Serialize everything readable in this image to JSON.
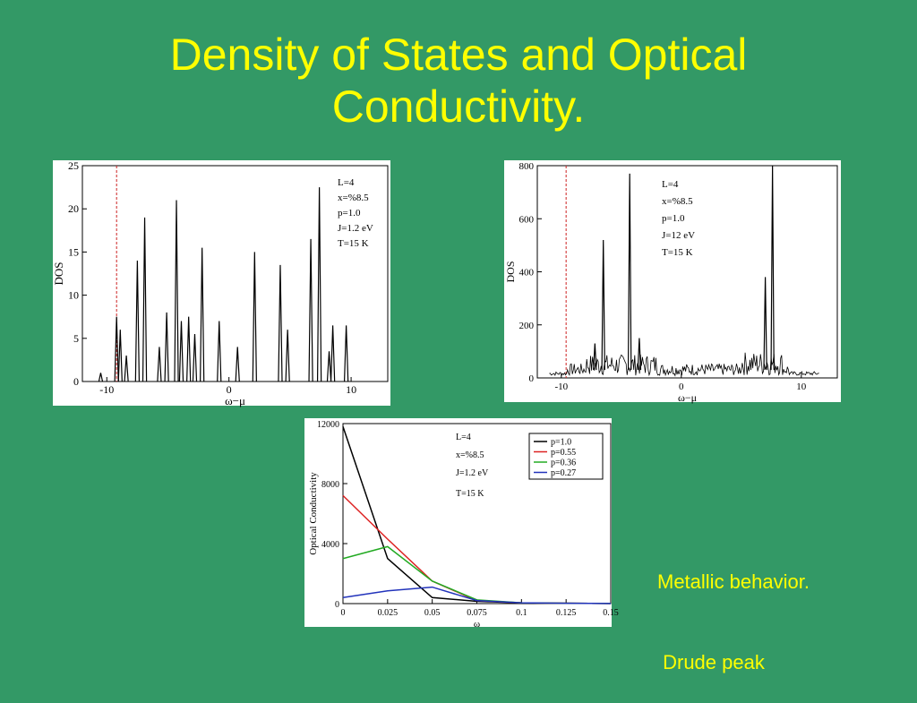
{
  "slide": {
    "title_line1": "Density of States and Optical",
    "title_line2": "Conductivity.",
    "caption_line1": "Metallic behavior.",
    "caption_line2": " Drude peak"
  },
  "colors": {
    "background": "#339966",
    "title": "#FFFF00",
    "dashed_marker": "#cc2222",
    "p1": "#000000",
    "p055": "#dd2222",
    "p036": "#22aa22",
    "p027": "#2233bb"
  },
  "chart_data": [
    {
      "type": "line",
      "xlabel": "ω−μ",
      "ylabel": "DOS",
      "xlim": [
        -12,
        13
      ],
      "ylim": [
        0,
        25
      ],
      "xticks": [
        -10,
        0,
        10
      ],
      "yticks": [
        0,
        5,
        10,
        15,
        20,
        25
      ],
      "marker_line_x": -9.2,
      "annotation_lines": [
        "L=4",
        "x=%8.5",
        "p=1.0",
        "J=1.2 eV",
        "T=15 K"
      ],
      "peaks": [
        {
          "x": -10.5,
          "h": 1
        },
        {
          "x": -9.2,
          "h": 7.5
        },
        {
          "x": -8.9,
          "h": 6
        },
        {
          "x": -8.4,
          "h": 3
        },
        {
          "x": -7.5,
          "h": 14
        },
        {
          "x": -6.9,
          "h": 19
        },
        {
          "x": -5.7,
          "h": 4
        },
        {
          "x": -5.1,
          "h": 8
        },
        {
          "x": -4.3,
          "h": 21
        },
        {
          "x": -3.9,
          "h": 7
        },
        {
          "x": -3.3,
          "h": 7.5
        },
        {
          "x": -2.8,
          "h": 5.5
        },
        {
          "x": -2.2,
          "h": 15.5
        },
        {
          "x": -0.8,
          "h": 7
        },
        {
          "x": 0.7,
          "h": 4
        },
        {
          "x": 2.1,
          "h": 15
        },
        {
          "x": 4.2,
          "h": 13.5
        },
        {
          "x": 4.8,
          "h": 6
        },
        {
          "x": 6.7,
          "h": 16.5
        },
        {
          "x": 7.4,
          "h": 22.5
        },
        {
          "x": 8.2,
          "h": 3.5
        },
        {
          "x": 8.5,
          "h": 6.5
        },
        {
          "x": 9.6,
          "h": 6.5
        }
      ]
    },
    {
      "type": "line",
      "xlabel": "ω−μ",
      "ylabel": "DOS",
      "xlim": [
        -12,
        13
      ],
      "ylim": [
        0,
        800
      ],
      "xticks": [
        -10,
        0,
        10
      ],
      "yticks": [
        0,
        200,
        400,
        600,
        800
      ],
      "marker_line_x": -9.6,
      "annotation_lines": [
        "L=4",
        "x=%8.5",
        "p=1.0",
        "J=12 eV",
        "T=15 K"
      ],
      "baseline": 30,
      "peaks": [
        {
          "x": -7.2,
          "h": 130
        },
        {
          "x": -6.5,
          "h": 520
        },
        {
          "x": -4.3,
          "h": 770
        },
        {
          "x": -3.5,
          "h": 150
        },
        {
          "x": 7.0,
          "h": 380
        },
        {
          "x": 7.6,
          "h": 800
        }
      ]
    },
    {
      "type": "line",
      "xlabel": "ω",
      "ylabel": "Optical Conductivity",
      "xlim": [
        0,
        0.15
      ],
      "ylim": [
        0,
        12000
      ],
      "xticks": [
        0,
        0.025,
        0.05,
        0.075,
        0.1,
        0.125,
        0.15
      ],
      "xticklabels": [
        "0",
        "0.025",
        "0.05",
        "0.075",
        "0.1",
        "0.125",
        "0.15"
      ],
      "yticks": [
        0,
        4000,
        8000,
        12000
      ],
      "annotation_lines": [
        "L=4",
        "x=%8.5",
        "J=1.2 eV",
        "T=15 K"
      ],
      "series": [
        {
          "name": "p=1.0",
          "color": "#000000",
          "x": [
            0,
            0.025,
            0.05,
            0.075,
            0.1,
            0.125,
            0.15
          ],
          "y": [
            11800,
            3000,
            400,
            150,
            50,
            20,
            10
          ]
        },
        {
          "name": "p=0.55",
          "color": "#dd2222",
          "x": [
            0,
            0.025,
            0.05,
            0.075,
            0.1,
            0.125,
            0.15
          ],
          "y": [
            7200,
            4300,
            1500,
            200,
            50,
            20,
            10
          ]
        },
        {
          "name": "p=0.36",
          "color": "#22aa22",
          "x": [
            0,
            0.025,
            0.05,
            0.075,
            0.1,
            0.125,
            0.15
          ],
          "y": [
            3000,
            3800,
            1500,
            250,
            50,
            20,
            10
          ]
        },
        {
          "name": "p=0.27",
          "color": "#2233bb",
          "x": [
            0,
            0.025,
            0.05,
            0.075,
            0.1,
            0.125,
            0.15
          ],
          "y": [
            400,
            850,
            1100,
            200,
            50,
            20,
            10
          ]
        }
      ]
    }
  ]
}
